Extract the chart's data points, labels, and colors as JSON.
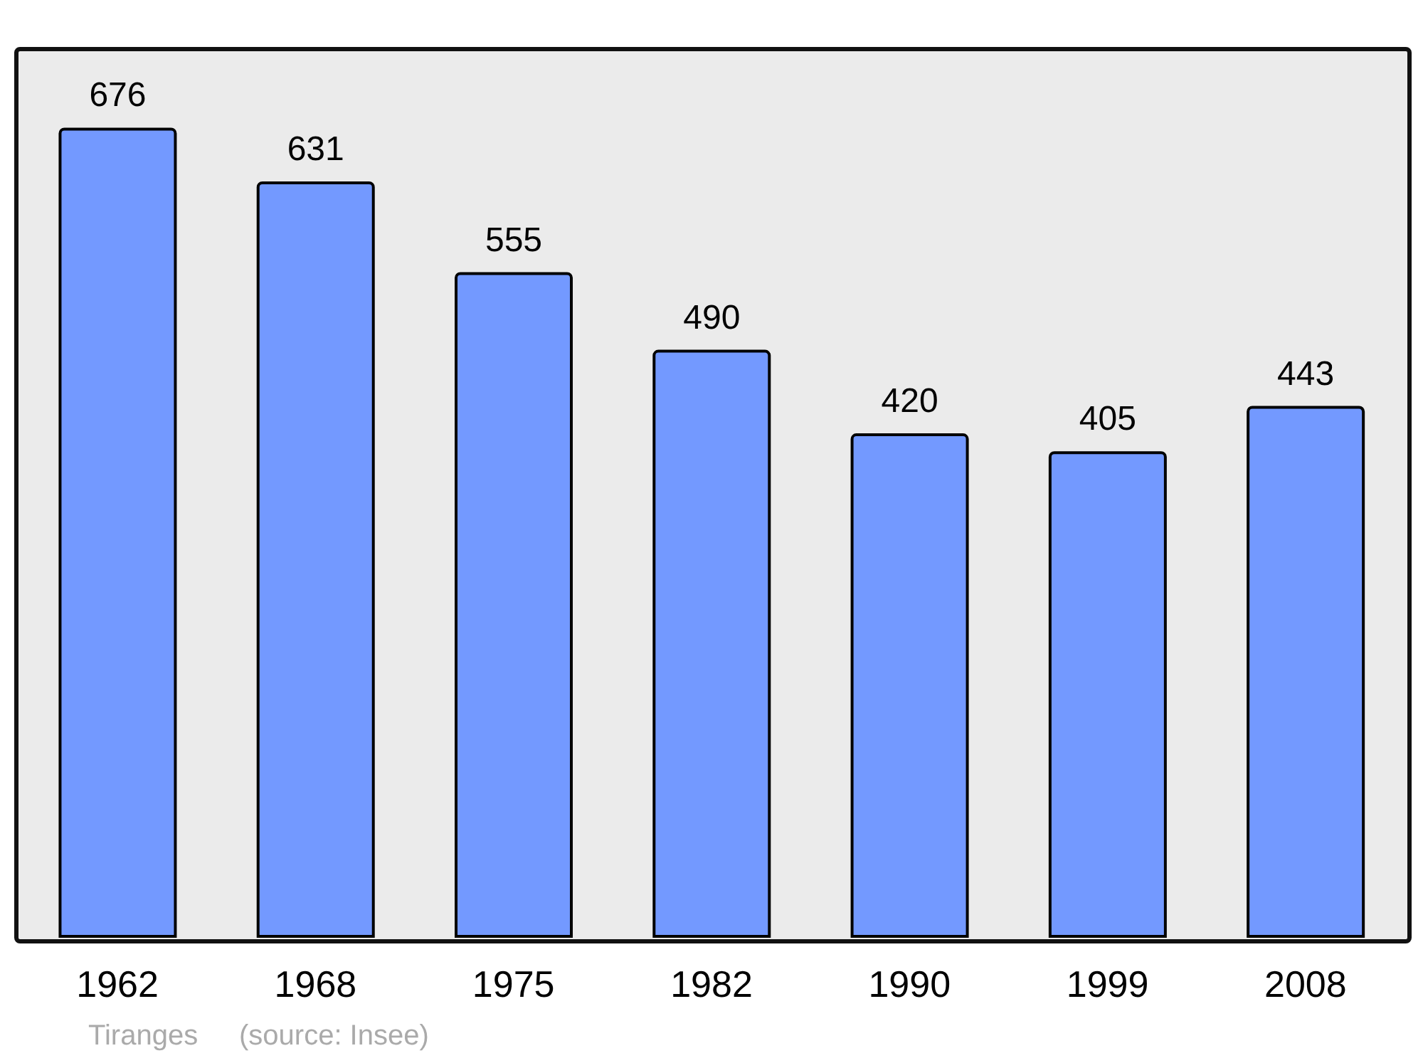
{
  "chart_data": {
    "type": "bar",
    "categories": [
      "1962",
      "1968",
      "1975",
      "1982",
      "1990",
      "1999",
      "2008"
    ],
    "values": [
      676,
      631,
      555,
      490,
      420,
      405,
      443
    ],
    "color": "#7399ff",
    "data_labels": true,
    "annotations": [
      "Tiranges",
      "(source: Insee)"
    ]
  }
}
